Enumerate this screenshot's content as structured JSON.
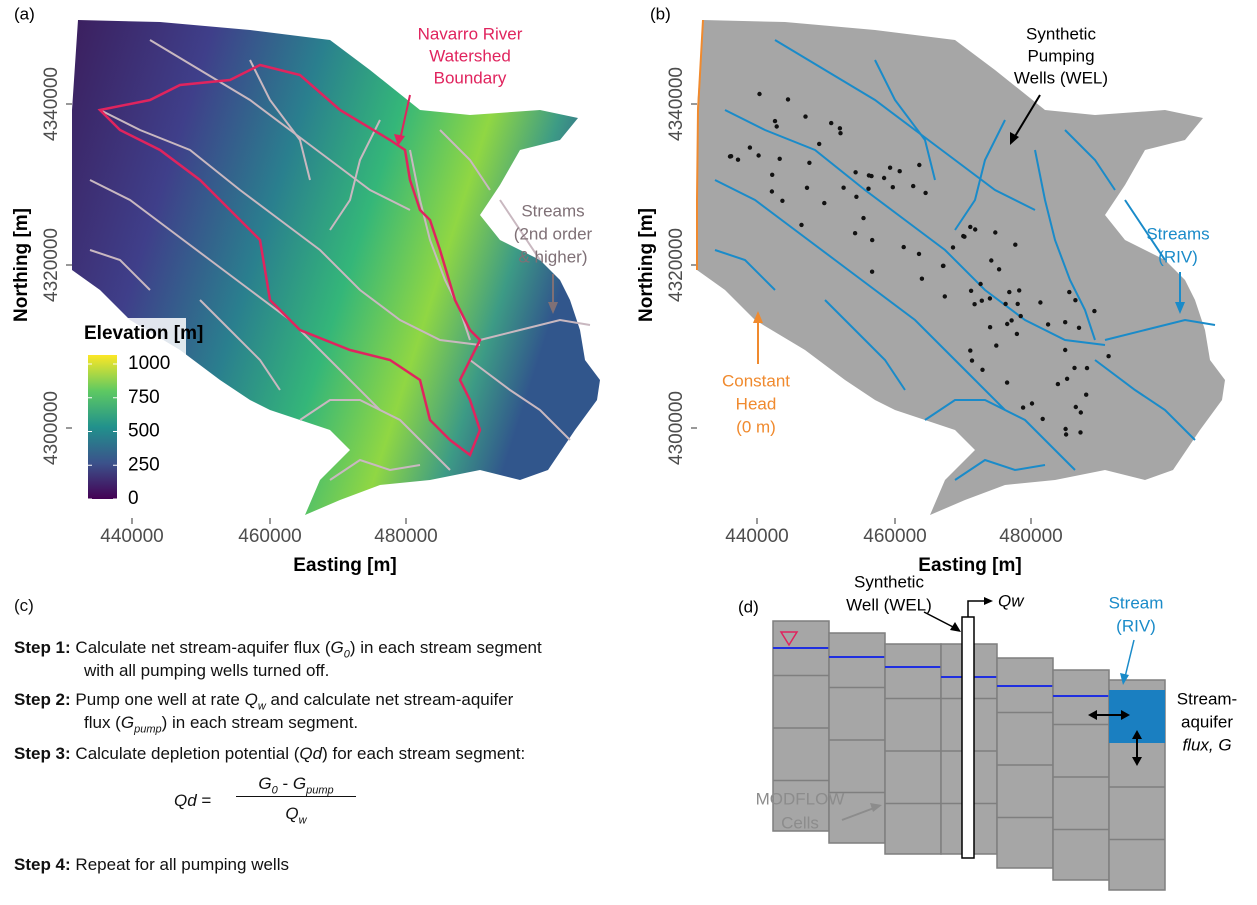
{
  "panel_a": {
    "label": "(a)",
    "x_label": "Easting [m]",
    "y_label": "Northing [m]",
    "x_ticks": [
      440000,
      460000,
      480000
    ],
    "y_ticks": [
      4340000,
      4320000,
      4300000
    ],
    "legend_title": "Elevation [m]",
    "legend_ticks": [
      1000,
      750,
      500,
      250,
      0
    ],
    "boundary_note": [
      "Navarro River",
      "Watershed",
      "Boundary"
    ],
    "streams_note": [
      "Streams",
      "(2nd order",
      "& higher)"
    ]
  },
  "panel_b": {
    "label": "(b)",
    "x_label": "Easting [m]",
    "y_label": "Northing [m]",
    "x_ticks": [
      440000,
      460000,
      480000
    ],
    "y_ticks": [
      4340000,
      4320000,
      4300000
    ],
    "wells_note": [
      "Synthetic",
      "Pumping",
      "Wells (WEL)"
    ],
    "streams_note": [
      "Streams",
      "(RIV)"
    ],
    "head_note": [
      "Constant",
      "Head",
      "(0 m)"
    ]
  },
  "panel_c": {
    "label": "(c)",
    "steps": [
      {
        "label": "Step 1:",
        "text": [
          "Calculate net stream-aquifer flux (",
          "G",
          "0",
          ") in each stream segment",
          "with all pumping wells turned off."
        ]
      },
      {
        "label": "Step 2:",
        "text": [
          "Pump one well at rate ",
          "Q",
          "w",
          " and calculate net stream-aquifer",
          "flux (",
          "G",
          "pump",
          ") in each stream segment."
        ]
      },
      {
        "label": "Step 3:",
        "text": [
          "Calculate depletion potential (",
          "Qd",
          ") for each stream segment:"
        ]
      },
      {
        "label": "Step 4:",
        "text": [
          "Repeat for all pumping wells"
        ]
      }
    ],
    "formula": [
      "Qd",
      "=",
      "G",
      "0",
      " - ",
      "G",
      "pump",
      "Q",
      "w"
    ]
  },
  "panel_d": {
    "label": "(d)",
    "well_note": [
      "Synthetic",
      "Well (WEL)"
    ],
    "pump_note": "Qw",
    "stream_note": [
      "Stream",
      "(RIV)"
    ],
    "flux_note": [
      "Stream-",
      "aquifer",
      "flux, G"
    ],
    "cells_note": [
      "MODFLOW",
      "Cells"
    ]
  }
}
